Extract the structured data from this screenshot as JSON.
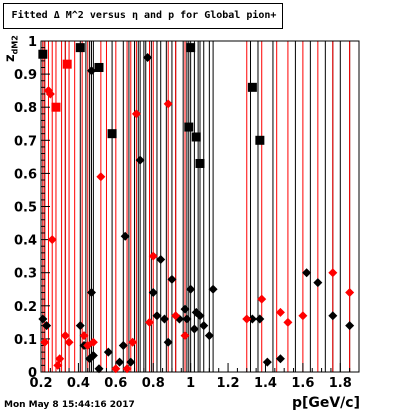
{
  "header": {
    "title": "Fitted Δ M^2 versus η and p for Global pion+"
  },
  "footer": {
    "timestamp": "Mon May  8 15:44:16 2017"
  },
  "chart_data": {
    "type": "scatter",
    "xlabel": "p[GeV/c]",
    "ylabel_main": "z",
    "ylabel_sub": "dM2",
    "xlim": [
      0.2,
      1.9
    ],
    "ylim": [
      0,
      1.0
    ],
    "xticks": [
      0.2,
      0.4,
      0.6,
      0.8,
      1.0,
      1.2,
      1.4,
      1.6,
      1.8
    ],
    "xtick_labels": [
      "0.2",
      "0.4",
      "0.6",
      "0.8",
      "1",
      "1.2",
      "1.4",
      "1.6",
      "1.8"
    ],
    "yticks": [
      0,
      0.1,
      0.2,
      0.3,
      0.4,
      0.5,
      0.6,
      0.7,
      0.8,
      0.9,
      1.0
    ],
    "ytick_labels": [
      "0",
      "0.1",
      "0.2",
      "0.3",
      "0.4",
      "0.5",
      "0.6",
      "0.7",
      "0.8",
      "0.9",
      "1"
    ],
    "grid": false,
    "colors": {
      "red": "#ff0000",
      "black": "#000000"
    },
    "vertical_lines": {
      "black": [
        0.21,
        0.22,
        0.33,
        0.41,
        0.44,
        0.46,
        0.47,
        0.48,
        0.58,
        0.64,
        0.67,
        0.7,
        0.72,
        0.73,
        0.75,
        0.76,
        0.79,
        0.82,
        0.84,
        0.87,
        0.9,
        0.92,
        0.96,
        0.98,
        0.99,
        1.0,
        1.02,
        1.04,
        1.05,
        1.07,
        1.1,
        1.12,
        1.32,
        1.36,
        1.44,
        1.56,
        1.64,
        1.72,
        1.76,
        1.8,
        1.85
      ],
      "red": [
        0.21,
        0.22,
        0.24,
        0.26,
        0.28,
        0.31,
        0.33,
        0.35,
        0.38,
        0.42,
        0.45,
        0.52,
        0.55,
        0.6,
        0.66,
        0.68,
        0.71,
        0.78,
        0.8,
        0.88,
        0.92,
        0.97,
        1.3,
        1.38,
        1.46,
        1.52,
        1.6,
        1.68,
        1.76,
        1.85
      ]
    },
    "series": [
      {
        "color": "black",
        "marker": "square",
        "points": [
          [
            0.21,
            0.96
          ],
          [
            0.41,
            0.98
          ],
          [
            0.51,
            0.92
          ],
          [
            0.58,
            0.72
          ],
          [
            0.99,
            0.74
          ],
          [
            1.0,
            0.98
          ],
          [
            1.03,
            0.71
          ],
          [
            1.05,
            0.63
          ],
          [
            1.33,
            0.86
          ],
          [
            1.37,
            0.7
          ]
        ]
      },
      {
        "color": "red",
        "marker": "square",
        "points": [
          [
            0.28,
            0.8
          ],
          [
            0.34,
            0.93
          ]
        ]
      },
      {
        "color": "black",
        "marker": "diamond",
        "points": [
          [
            0.21,
            0.16
          ],
          [
            0.23,
            0.14
          ],
          [
            0.41,
            0.14
          ],
          [
            0.43,
            0.08
          ],
          [
            0.46,
            0.04
          ],
          [
            0.47,
            0.24
          ],
          [
            0.47,
            0.91
          ],
          [
            0.48,
            0.05
          ],
          [
            0.51,
            0.01
          ],
          [
            0.56,
            0.06
          ],
          [
            0.62,
            0.03
          ],
          [
            0.64,
            0.08
          ],
          [
            0.65,
            0.41
          ],
          [
            0.68,
            0.03
          ],
          [
            0.73,
            0.64
          ],
          [
            0.77,
            0.95
          ],
          [
            0.8,
            0.24
          ],
          [
            0.82,
            0.17
          ],
          [
            0.84,
            0.34
          ],
          [
            0.86,
            0.16
          ],
          [
            0.88,
            0.09
          ],
          [
            0.9,
            0.28
          ],
          [
            0.94,
            0.16
          ],
          [
            0.97,
            0.19
          ],
          [
            0.98,
            0.16
          ],
          [
            1.0,
            0.25
          ],
          [
            1.02,
            0.13
          ],
          [
            1.03,
            0.18
          ],
          [
            1.05,
            0.17
          ],
          [
            1.07,
            0.14
          ],
          [
            1.1,
            0.11
          ],
          [
            1.12,
            0.25
          ],
          [
            1.33,
            0.16
          ],
          [
            1.37,
            0.16
          ],
          [
            1.41,
            0.03
          ],
          [
            1.48,
            0.04
          ],
          [
            1.62,
            0.3
          ],
          [
            1.68,
            0.27
          ],
          [
            1.76,
            0.17
          ],
          [
            1.85,
            0.14
          ]
        ]
      },
      {
        "color": "red",
        "marker": "diamond",
        "points": [
          [
            0.22,
            0.09
          ],
          [
            0.24,
            0.85
          ],
          [
            0.25,
            0.84
          ],
          [
            0.26,
            0.4
          ],
          [
            0.29,
            0.02
          ],
          [
            0.3,
            0.04
          ],
          [
            0.33,
            0.11
          ],
          [
            0.35,
            0.09
          ],
          [
            0.43,
            0.11
          ],
          [
            0.45,
            0.08
          ],
          [
            0.48,
            0.09
          ],
          [
            0.52,
            0.59
          ],
          [
            0.6,
            0.01
          ],
          [
            0.66,
            0.01
          ],
          [
            0.69,
            0.09
          ],
          [
            0.71,
            0.78
          ],
          [
            0.78,
            0.15
          ],
          [
            0.8,
            0.35
          ],
          [
            0.88,
            0.81
          ],
          [
            0.92,
            0.17
          ],
          [
            0.97,
            0.11
          ],
          [
            1.3,
            0.16
          ],
          [
            1.38,
            0.22
          ],
          [
            1.48,
            0.18
          ],
          [
            1.52,
            0.15
          ],
          [
            1.6,
            0.17
          ],
          [
            1.76,
            0.3
          ],
          [
            1.85,
            0.24
          ]
        ]
      }
    ]
  }
}
